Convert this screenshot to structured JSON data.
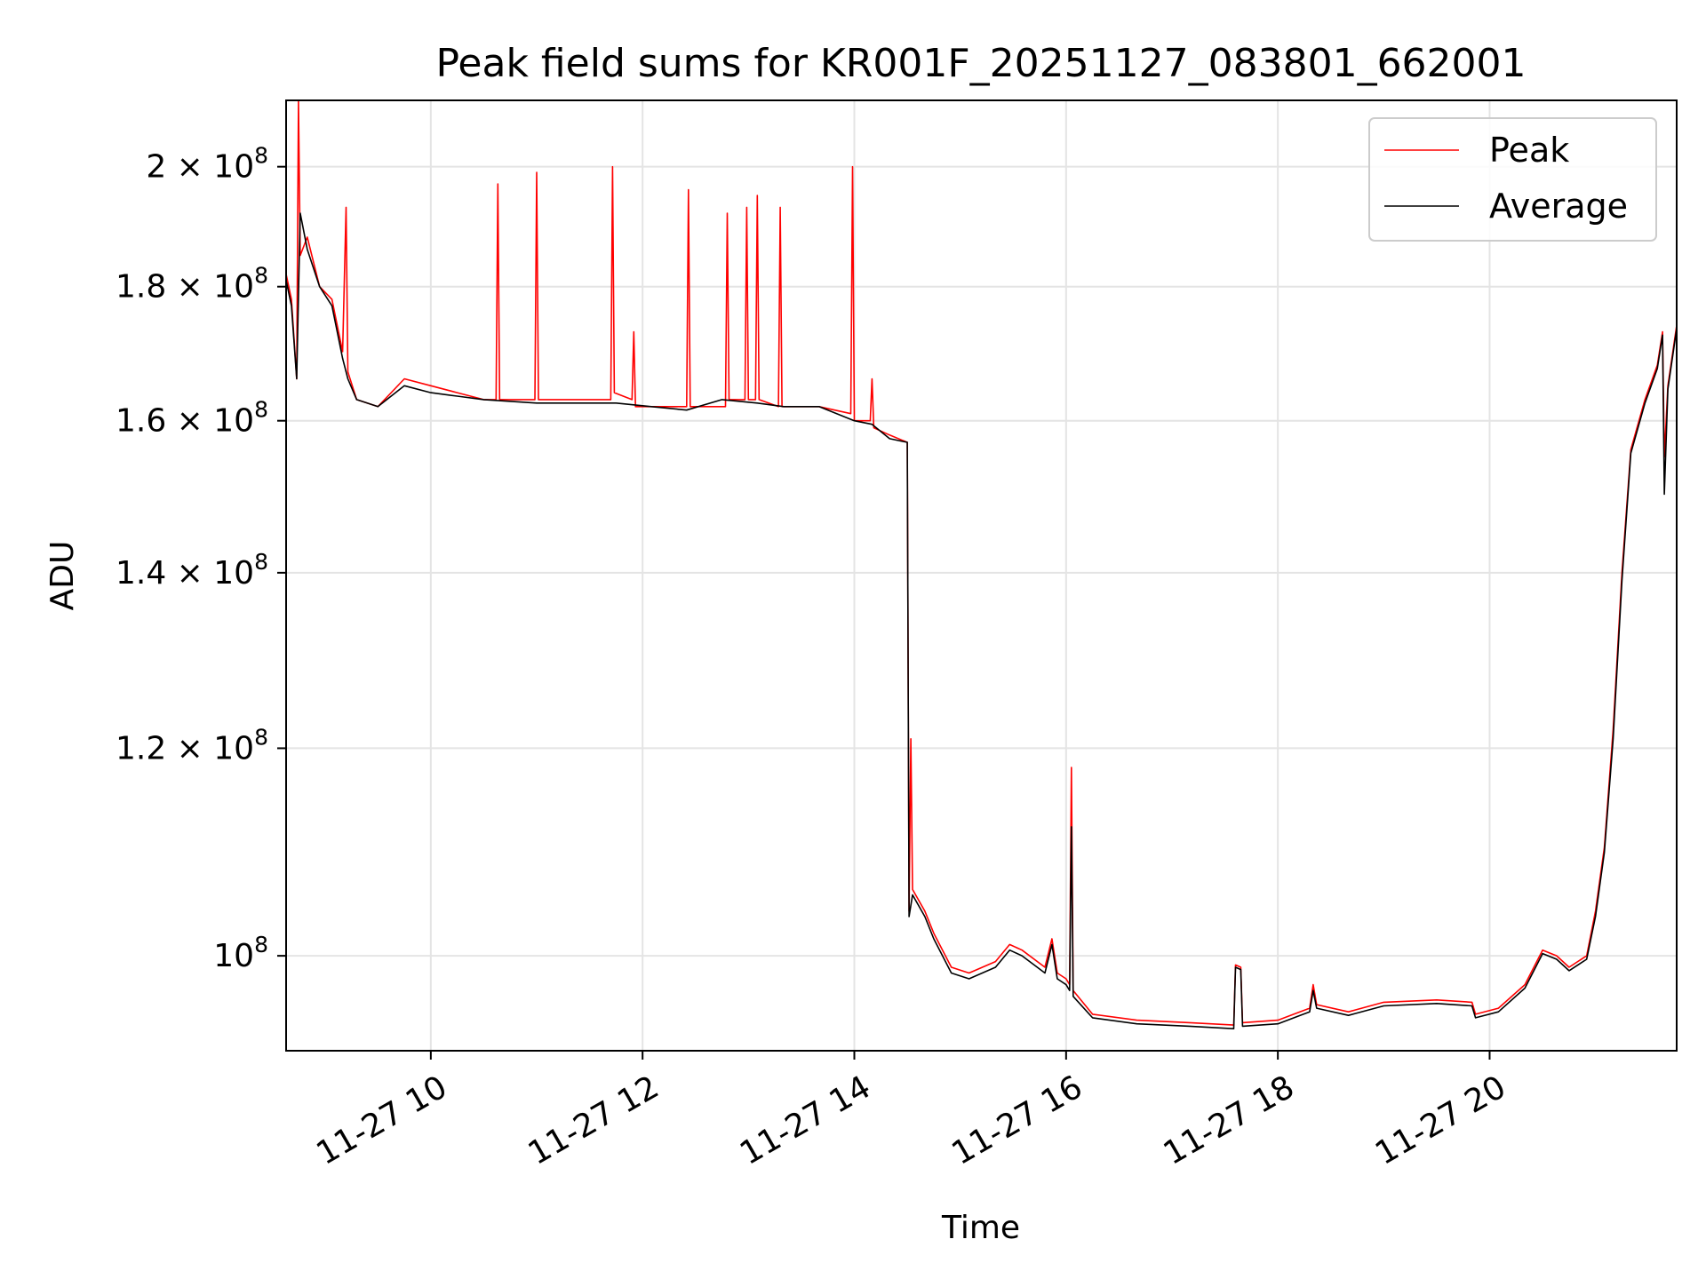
{
  "chart_data": {
    "type": "line",
    "title": "Peak field sums for KR001F_20251127_083801_662001",
    "xlabel": "Time",
    "ylabel": "ADU",
    "y_scale": "log",
    "ylim": [
      92000000,
      212000000
    ],
    "xlim": [
      "11-27 08:38",
      "11-27 21:46"
    ],
    "grid": true,
    "legend_position": "top-right",
    "x_ticks": [
      {
        "value": "11-27 10:00",
        "label": "11-27 10"
      },
      {
        "value": "11-27 12:00",
        "label": "11-27 12"
      },
      {
        "value": "11-27 14:00",
        "label": "11-27 14"
      },
      {
        "value": "11-27 16:00",
        "label": "11-27 16"
      },
      {
        "value": "11-27 18:00",
        "label": "11-27 18"
      },
      {
        "value": "11-27 20:00",
        "label": "11-27 20"
      }
    ],
    "y_ticks": [
      {
        "value": 100000000,
        "base": "10",
        "exp": "8",
        "coef": ""
      },
      {
        "value": 120000000,
        "base": "1.2 × 10",
        "exp": "8",
        "coef": "1.2"
      },
      {
        "value": 140000000,
        "base": "1.4 × 10",
        "exp": "8",
        "coef": "1.4"
      },
      {
        "value": 160000000,
        "base": "1.6 × 10",
        "exp": "8",
        "coef": "1.6"
      },
      {
        "value": 180000000,
        "base": "1.8 × 10",
        "exp": "8",
        "coef": "1.8"
      },
      {
        "value": 200000000,
        "base": "2 × 10",
        "exp": "8",
        "coef": "2"
      }
    ],
    "series": [
      {
        "name": "Peak",
        "color": "#ff0000",
        "points": [
          [
            "11-27 08:38",
            182000000
          ],
          [
            "11-27 08:41",
            178000000
          ],
          [
            "11-27 08:44",
            166000000
          ],
          [
            "11-27 08:45",
            212000000
          ],
          [
            "11-27 08:46",
            185000000
          ],
          [
            "11-27 08:50",
            188000000
          ],
          [
            "11-27 08:57",
            180000000
          ],
          [
            "11-27 09:04",
            178000000
          ],
          [
            "11-27 09:10",
            170000000
          ],
          [
            "11-27 09:12",
            193000000
          ],
          [
            "11-27 09:13",
            167000000
          ],
          [
            "11-27 09:18",
            163000000
          ],
          [
            "11-27 09:30",
            162000000
          ],
          [
            "11-27 09:45",
            166000000
          ],
          [
            "11-27 10:00",
            165000000
          ],
          [
            "11-27 10:15",
            164000000
          ],
          [
            "11-27 10:30",
            163000000
          ],
          [
            "11-27 10:37",
            163000000
          ],
          [
            "11-27 10:38",
            197000000
          ],
          [
            "11-27 10:39",
            163000000
          ],
          [
            "11-27 10:59",
            163000000
          ],
          [
            "11-27 11:00",
            199000000
          ],
          [
            "11-27 11:01",
            163000000
          ],
          [
            "11-27 11:25",
            163000000
          ],
          [
            "11-27 11:42",
            163000000
          ],
          [
            "11-27 11:43",
            200000000
          ],
          [
            "11-27 11:44",
            164000000
          ],
          [
            "11-27 11:54",
            163000000
          ],
          [
            "11-27 11:55",
            173000000
          ],
          [
            "11-27 11:56",
            162000000
          ],
          [
            "11-27 12:25",
            162000000
          ],
          [
            "11-27 12:26",
            196000000
          ],
          [
            "11-27 12:27",
            162000000
          ],
          [
            "11-27 12:47",
            162000000
          ],
          [
            "11-27 12:48",
            192000000
          ],
          [
            "11-27 12:49",
            163000000
          ],
          [
            "11-27 12:58",
            163000000
          ],
          [
            "11-27 12:59",
            193000000
          ],
          [
            "11-27 13:00",
            163000000
          ],
          [
            "11-27 13:04",
            163000000
          ],
          [
            "11-27 13:05",
            195000000
          ],
          [
            "11-27 13:06",
            163000000
          ],
          [
            "11-27 13:17",
            162000000
          ],
          [
            "11-27 13:18",
            193000000
          ],
          [
            "11-27 13:19",
            162000000
          ],
          [
            "11-27 13:40",
            162000000
          ],
          [
            "11-27 13:58",
            161000000
          ],
          [
            "11-27 13:59",
            200000000
          ],
          [
            "11-27 14:00",
            160000000
          ],
          [
            "11-27 14:09",
            160000000
          ],
          [
            "11-27 14:10",
            166000000
          ],
          [
            "11-27 14:11",
            159000000
          ],
          [
            "11-27 14:20",
            158000000
          ],
          [
            "11-27 14:30",
            157000000
          ],
          [
            "11-27 14:31",
            104000000
          ],
          [
            "11-27 14:32",
            121000000
          ],
          [
            "11-27 14:33",
            106000000
          ],
          [
            "11-27 14:40",
            104000000
          ],
          [
            "11-27 14:45",
            102000000
          ],
          [
            "11-27 14:55",
            99000000
          ],
          [
            "11-27 15:05",
            98500000
          ],
          [
            "11-27 15:20",
            99500000
          ],
          [
            "11-27 15:28",
            101000000
          ],
          [
            "11-27 15:35",
            100500000
          ],
          [
            "11-27 15:48",
            99000000
          ],
          [
            "11-27 15:52",
            101500000
          ],
          [
            "11-27 15:55",
            98500000
          ],
          [
            "11-27 16:00",
            98000000
          ],
          [
            "11-27 16:02",
            97500000
          ],
          [
            "11-27 16:03",
            118000000
          ],
          [
            "11-27 16:04",
            97000000
          ],
          [
            "11-27 16:15",
            95000000
          ],
          [
            "11-27 16:40",
            94500000
          ],
          [
            "11-27 17:10",
            94300000
          ],
          [
            "11-27 17:35",
            94100000
          ],
          [
            "11-27 17:36",
            99200000
          ],
          [
            "11-27 17:39",
            99000000
          ],
          [
            "11-27 17:40",
            94300000
          ],
          [
            "11-27 18:00",
            94500000
          ],
          [
            "11-27 18:18",
            95500000
          ],
          [
            "11-27 18:20",
            97500000
          ],
          [
            "11-27 18:22",
            95800000
          ],
          [
            "11-27 18:40",
            95200000
          ],
          [
            "11-27 19:00",
            96000000
          ],
          [
            "11-27 19:30",
            96200000
          ],
          [
            "11-27 19:50",
            96000000
          ],
          [
            "11-27 19:52",
            95000000
          ],
          [
            "11-27 20:05",
            95500000
          ],
          [
            "11-27 20:20",
            97500000
          ],
          [
            "11-27 20:30",
            100500000
          ],
          [
            "11-27 20:38",
            100000000
          ],
          [
            "11-27 20:45",
            99000000
          ],
          [
            "11-27 20:55",
            100000000
          ],
          [
            "11-27 21:00",
            104000000
          ],
          [
            "11-27 21:05",
            110000000
          ],
          [
            "11-27 21:10",
            122000000
          ],
          [
            "11-27 21:15",
            140000000
          ],
          [
            "11-27 21:20",
            156000000
          ],
          [
            "11-27 21:28",
            163000000
          ],
          [
            "11-27 21:35",
            168000000
          ],
          [
            "11-27 21:38",
            173000000
          ],
          [
            "11-27 21:39",
            155000000
          ],
          [
            "11-27 21:41",
            165000000
          ],
          [
            "11-27 21:46",
            174000000
          ]
        ]
      },
      {
        "name": "Average",
        "color": "#000000",
        "points": [
          [
            "11-27 08:38",
            181000000
          ],
          [
            "11-27 08:41",
            177000000
          ],
          [
            "11-27 08:44",
            166000000
          ],
          [
            "11-27 08:46",
            192000000
          ],
          [
            "11-27 08:50",
            186000000
          ],
          [
            "11-27 08:57",
            180000000
          ],
          [
            "11-27 09:04",
            177000000
          ],
          [
            "11-27 09:10",
            169000000
          ],
          [
            "11-27 09:13",
            166000000
          ],
          [
            "11-27 09:18",
            163000000
          ],
          [
            "11-27 09:30",
            162000000
          ],
          [
            "11-27 09:45",
            165000000
          ],
          [
            "11-27 10:00",
            164000000
          ],
          [
            "11-27 10:15",
            163500000
          ],
          [
            "11-27 10:30",
            163000000
          ],
          [
            "11-27 11:00",
            162500000
          ],
          [
            "11-27 11:25",
            162500000
          ],
          [
            "11-27 11:45",
            162500000
          ],
          [
            "11-27 12:05",
            162000000
          ],
          [
            "11-27 12:25",
            161500000
          ],
          [
            "11-27 12:45",
            163000000
          ],
          [
            "11-27 13:05",
            162500000
          ],
          [
            "11-27 13:20",
            162000000
          ],
          [
            "11-27 13:40",
            162000000
          ],
          [
            "11-27 14:00",
            160000000
          ],
          [
            "11-27 14:10",
            159500000
          ],
          [
            "11-27 14:20",
            157500000
          ],
          [
            "11-27 14:30",
            157000000
          ],
          [
            "11-27 14:31",
            103500000
          ],
          [
            "11-27 14:33",
            105500000
          ],
          [
            "11-27 14:40",
            103500000
          ],
          [
            "11-27 14:45",
            101500000
          ],
          [
            "11-27 14:55",
            98500000
          ],
          [
            "11-27 15:05",
            98000000
          ],
          [
            "11-27 15:20",
            99000000
          ],
          [
            "11-27 15:28",
            100500000
          ],
          [
            "11-27 15:35",
            100000000
          ],
          [
            "11-27 15:48",
            98500000
          ],
          [
            "11-27 15:52",
            101000000
          ],
          [
            "11-27 15:55",
            98000000
          ],
          [
            "11-27 16:00",
            97500000
          ],
          [
            "11-27 16:02",
            97000000
          ],
          [
            "11-27 16:03",
            112000000
          ],
          [
            "11-27 16:04",
            96500000
          ],
          [
            "11-27 16:15",
            94700000
          ],
          [
            "11-27 16:40",
            94200000
          ],
          [
            "11-27 17:10",
            94000000
          ],
          [
            "11-27 17:35",
            93800000
          ],
          [
            "11-27 17:36",
            99000000
          ],
          [
            "11-27 17:39",
            98800000
          ],
          [
            "11-27 17:40",
            94000000
          ],
          [
            "11-27 18:00",
            94200000
          ],
          [
            "11-27 18:18",
            95200000
          ],
          [
            "11-27 18:20",
            97000000
          ],
          [
            "11-27 18:22",
            95500000
          ],
          [
            "11-27 18:40",
            94900000
          ],
          [
            "11-27 19:00",
            95700000
          ],
          [
            "11-27 19:30",
            95900000
          ],
          [
            "11-27 19:50",
            95700000
          ],
          [
            "11-27 19:52",
            94700000
          ],
          [
            "11-27 20:05",
            95200000
          ],
          [
            "11-27 20:20",
            97200000
          ],
          [
            "11-27 20:30",
            100200000
          ],
          [
            "11-27 20:38",
            99700000
          ],
          [
            "11-27 20:45",
            98700000
          ],
          [
            "11-27 20:55",
            99700000
          ],
          [
            "11-27 21:00",
            103500000
          ],
          [
            "11-27 21:05",
            109500000
          ],
          [
            "11-27 21:10",
            121000000
          ],
          [
            "11-27 21:15",
            139000000
          ],
          [
            "11-27 21:20",
            155500000
          ],
          [
            "11-27 21:28",
            162500000
          ],
          [
            "11-27 21:35",
            167500000
          ],
          [
            "11-27 21:38",
            172500000
          ],
          [
            "11-27 21:39",
            150000000
          ],
          [
            "11-27 21:41",
            164500000
          ],
          [
            "11-27 21:46",
            173500000
          ]
        ]
      }
    ]
  }
}
